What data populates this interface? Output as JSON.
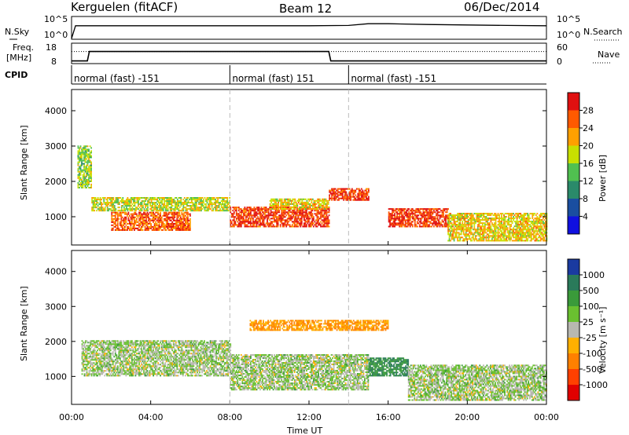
{
  "header": {
    "station": "Kerguelen (fitACF)",
    "beam": "Beam 12",
    "date": "06/Dec/2014"
  },
  "noise_panel": {
    "left_label": "N.Sky",
    "right_label": "N.Search",
    "yticks_left": [
      "10^5",
      "10^0"
    ],
    "yticks_right": [
      "10^5",
      "10^0"
    ]
  },
  "freq_panel": {
    "left_label_1": "Freq.",
    "left_label_2": "[MHz]",
    "right_label": "Nave",
    "yticks_left": [
      "18",
      "8"
    ],
    "yticks_right": [
      "60",
      "0"
    ],
    "cpid_label": "CPID"
  },
  "cpid_segments": [
    {
      "label": "normal (fast) -151",
      "start_hour": 0
    },
    {
      "label": "normal (fast) 151",
      "start_hour": 8
    },
    {
      "label": "normal (fast) -151",
      "start_hour": 14
    }
  ],
  "power_panel": {
    "ylabel": "Slant Range [km]",
    "cbar_label": "Power [dB]",
    "cbar_ticks": [
      "28",
      "24",
      "20",
      "16",
      "12",
      "8",
      "4"
    ],
    "cbar_colors": [
      "#e01010",
      "#ff5a00",
      "#ffa000",
      "#c8e000",
      "#50c050",
      "#2a8a6a",
      "#1a4ea0",
      "#1010e0"
    ]
  },
  "velocity_panel": {
    "ylabel": "Slant Range [km]",
    "cbar_label": "Velocity [m s⁻¹]",
    "cbar_ticks": [
      "1000",
      "500",
      "100",
      "25",
      "-25",
      "-100",
      "-500",
      "-1000"
    ],
    "cbar_colors": [
      "#1a3aa0",
      "#2a7a5a",
      "#3a9a3a",
      "#6ac030",
      "#b8b8b0",
      "#ffb000",
      "#ff8000",
      "#ff4000",
      "#e00000"
    ]
  },
  "range_ticks": [
    "1000",
    "2000",
    "3000",
    "4000"
  ],
  "xaxis": {
    "title": "Time UT",
    "ticks": [
      "00:00",
      "04:00",
      "08:00",
      "12:00",
      "16:00",
      "20:00",
      "00:00"
    ]
  },
  "chart_data": [
    {
      "type": "line",
      "title": "N.Sky / N.Search",
      "x_unit": "hours UT",
      "yscale": "log",
      "ylim": [
        1,
        100000
      ],
      "series": [
        {
          "name": "N.Sky",
          "x": [
            0,
            0.2,
            2,
            4,
            6,
            8,
            10,
            12,
            14,
            15,
            16,
            18,
            20,
            22,
            24
          ],
          "y": [
            1,
            1000,
            1000,
            1000,
            1000,
            1000,
            1000,
            1000,
            1200,
            3000,
            3000,
            2000,
            1500,
            1200,
            1000
          ]
        }
      ]
    },
    {
      "type": "line",
      "title": "Freq. / Nave",
      "x_unit": "hours UT",
      "ylim": [
        8,
        18
      ],
      "series": [
        {
          "name": "Freq. [MHz]",
          "x": [
            0,
            0.8,
            0.9,
            13,
            13.1,
            24
          ],
          "y": [
            9,
            9,
            14,
            14,
            9,
            9
          ]
        },
        {
          "name": "Nave",
          "x": [
            0,
            24
          ],
          "y": [
            14,
            14
          ]
        }
      ]
    },
    {
      "type": "heatmap",
      "title": "Power [dB]",
      "x_unit": "hours UT",
      "ylabel": "Slant Range [km]",
      "xlim": [
        0,
        24
      ],
      "ylim": [
        200,
        4600
      ],
      "bands": [
        {
          "x": [
            0.3,
            1
          ],
          "range": [
            1800,
            3000
          ],
          "value": 14
        },
        {
          "x": [
            1,
            8
          ],
          "range": [
            1150,
            1550
          ],
          "value": 16
        },
        {
          "x": [
            2,
            6
          ],
          "range": [
            600,
            1100
          ],
          "value": 24
        },
        {
          "x": [
            8,
            13
          ],
          "range": [
            700,
            1250
          ],
          "value": 26
        },
        {
          "x": [
            10,
            13
          ],
          "range": [
            1200,
            1500
          ],
          "value": 18
        },
        {
          "x": [
            13,
            15
          ],
          "range": [
            1450,
            1800
          ],
          "value": 26
        },
        {
          "x": [
            16,
            19
          ],
          "range": [
            700,
            1200
          ],
          "value": 26
        },
        {
          "x": [
            19,
            24
          ],
          "range": [
            300,
            1100
          ],
          "value": 18
        }
      ]
    },
    {
      "type": "heatmap",
      "title": "Velocity [m s⁻¹]",
      "x_unit": "hours UT",
      "ylabel": "Slant Range [km]",
      "xlim": [
        0,
        24
      ],
      "ylim": [
        200,
        4600
      ],
      "bands": [
        {
          "x": [
            0.5,
            8
          ],
          "range": [
            1000,
            2000
          ],
          "value": 0
        },
        {
          "x": [
            8,
            15
          ],
          "range": [
            600,
            1600
          ],
          "value": 0
        },
        {
          "x": [
            15,
            17
          ],
          "range": [
            1000,
            1500
          ],
          "value": 100
        },
        {
          "x": [
            17,
            24
          ],
          "range": [
            300,
            1300
          ],
          "value": 0
        },
        {
          "x": [
            9,
            16
          ],
          "range": [
            2300,
            2600
          ],
          "value": -100
        }
      ]
    }
  ]
}
